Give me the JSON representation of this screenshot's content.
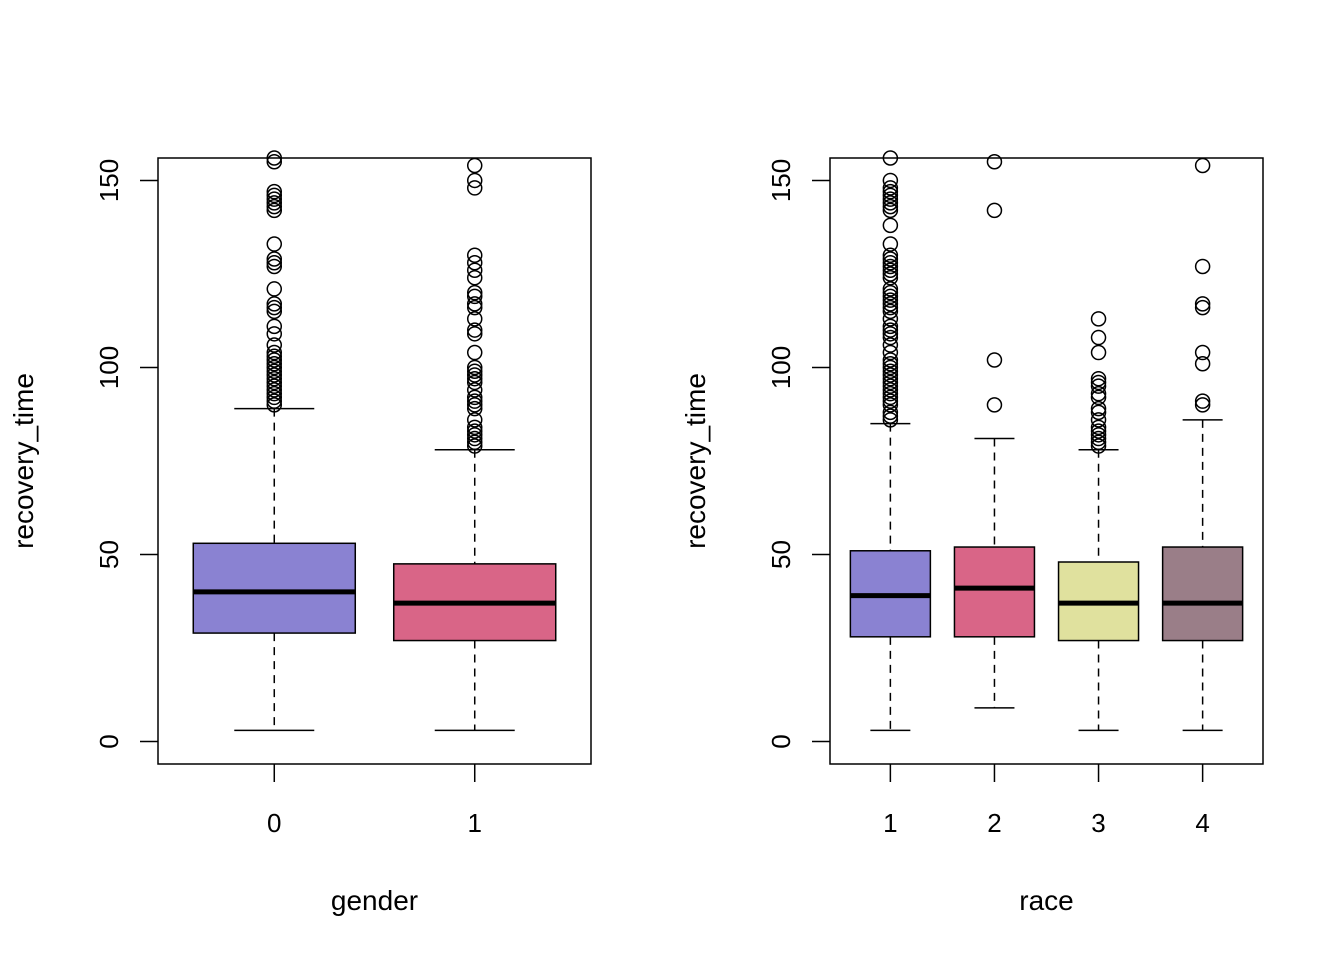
{
  "chart_data": [
    {
      "type": "boxplot",
      "xlabel": "gender",
      "ylabel": "recovery_time",
      "ylim": [
        -6,
        156
      ],
      "y_ticks": [
        0,
        50,
        100,
        150
      ],
      "grid": false,
      "categories": [
        "0",
        "1"
      ],
      "boxes": [
        {
          "category": "0",
          "color": "#8a82d2",
          "whisker_low": 3,
          "q1": 29,
          "median": 40,
          "q3": 53,
          "whisker_high": 89,
          "outliers": [
            90,
            91,
            92,
            93,
            94,
            95,
            96,
            97,
            98,
            99,
            100,
            101,
            102,
            103,
            104,
            106,
            109,
            111,
            115,
            116,
            117,
            121,
            127,
            128,
            129,
            133,
            142,
            143,
            144,
            145,
            146,
            147,
            155,
            156
          ]
        },
        {
          "category": "1",
          "color": "#d96587",
          "whisker_low": 3,
          "q1": 27,
          "median": 37,
          "q3": 47.5,
          "whisker_high": 78,
          "outliers": [
            79,
            80,
            81,
            82,
            83,
            84,
            86,
            89,
            90,
            91,
            92,
            94,
            96,
            97,
            98,
            99,
            100,
            104,
            109,
            110,
            113,
            116,
            117,
            119,
            120,
            124,
            126,
            128,
            130,
            148,
            150,
            154
          ]
        }
      ]
    },
    {
      "type": "boxplot",
      "xlabel": "race",
      "ylabel": "recovery_time",
      "ylim": [
        -6,
        156
      ],
      "y_ticks": [
        0,
        50,
        100,
        150
      ],
      "grid": false,
      "categories": [
        "1",
        "2",
        "3",
        "4"
      ],
      "boxes": [
        {
          "category": "1",
          "color": "#8a82d2",
          "whisker_low": 3,
          "q1": 28,
          "median": 39,
          "q3": 51,
          "whisker_high": 85,
          "outliers": [
            86,
            87,
            88,
            90,
            91,
            92,
            93,
            94,
            95,
            96,
            97,
            98,
            99,
            100,
            101,
            102,
            104,
            106,
            108,
            109,
            110,
            111,
            113,
            115,
            116,
            117,
            118,
            119,
            120,
            121,
            124,
            125,
            126,
            127,
            128,
            129,
            130,
            133,
            138,
            142,
            143,
            144,
            145,
            146,
            147,
            148,
            150,
            156
          ]
        },
        {
          "category": "2",
          "color": "#d96587",
          "whisker_low": 9,
          "q1": 28,
          "median": 41,
          "q3": 52,
          "whisker_high": 81,
          "outliers": [
            90,
            102,
            142,
            155
          ]
        },
        {
          "category": "3",
          "color": "#e0e19e",
          "whisker_low": 3,
          "q1": 27,
          "median": 37,
          "q3": 48,
          "whisker_high": 78,
          "outliers": [
            79,
            80,
            81,
            82,
            83,
            84,
            86,
            88,
            89,
            92,
            93,
            95,
            96,
            97,
            104,
            108,
            113
          ]
        },
        {
          "category": "4",
          "color": "#9a7e88",
          "whisker_low": 3,
          "q1": 27,
          "median": 37,
          "q3": 52,
          "whisker_high": 86,
          "outliers": [
            90,
            91,
            101,
            104,
            116,
            117,
            127,
            154
          ]
        }
      ]
    }
  ]
}
